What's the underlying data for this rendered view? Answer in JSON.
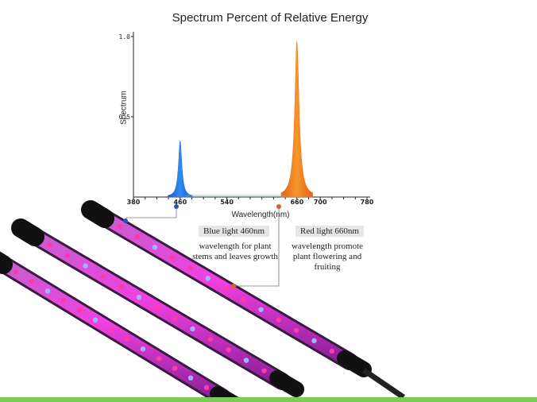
{
  "chart_data": {
    "type": "area",
    "title": "Spectrum  Percent of Relative Energy",
    "xlabel": "Wavelength(nm)",
    "ylabel": "Spectrum",
    "xlim": [
      380,
      780
    ],
    "ylim": [
      0,
      1.0
    ],
    "xticks": [
      "380",
      "460",
      "540",
      "660",
      "700",
      "780"
    ],
    "yticks": [
      "0.5",
      "1.0"
    ],
    "series": [
      {
        "name": "Blue light 460nm",
        "peak_nm": 460,
        "peak_value": 0.35,
        "color": "#2f6fe0"
      },
      {
        "name": "Red light 660nm",
        "peak_nm": 660,
        "peak_value": 0.97,
        "color": "#f07a1e"
      }
    ],
    "grid": false
  },
  "annotations": {
    "blue_label": "Blue light 460nm",
    "blue_desc_line1": "wavelength for plant",
    "blue_desc_line2": "stems  and  leaves growth",
    "red_label": "Red light 660nm",
    "red_desc_line1": "wavelength promote",
    "red_desc_line2": "plant flowering and fruiting"
  },
  "colors": {
    "blue_marker": "#2456c8",
    "red_marker": "#d9642a",
    "lamp_glow": "#d21fc7",
    "bottom_bar": "#7dc95a"
  }
}
